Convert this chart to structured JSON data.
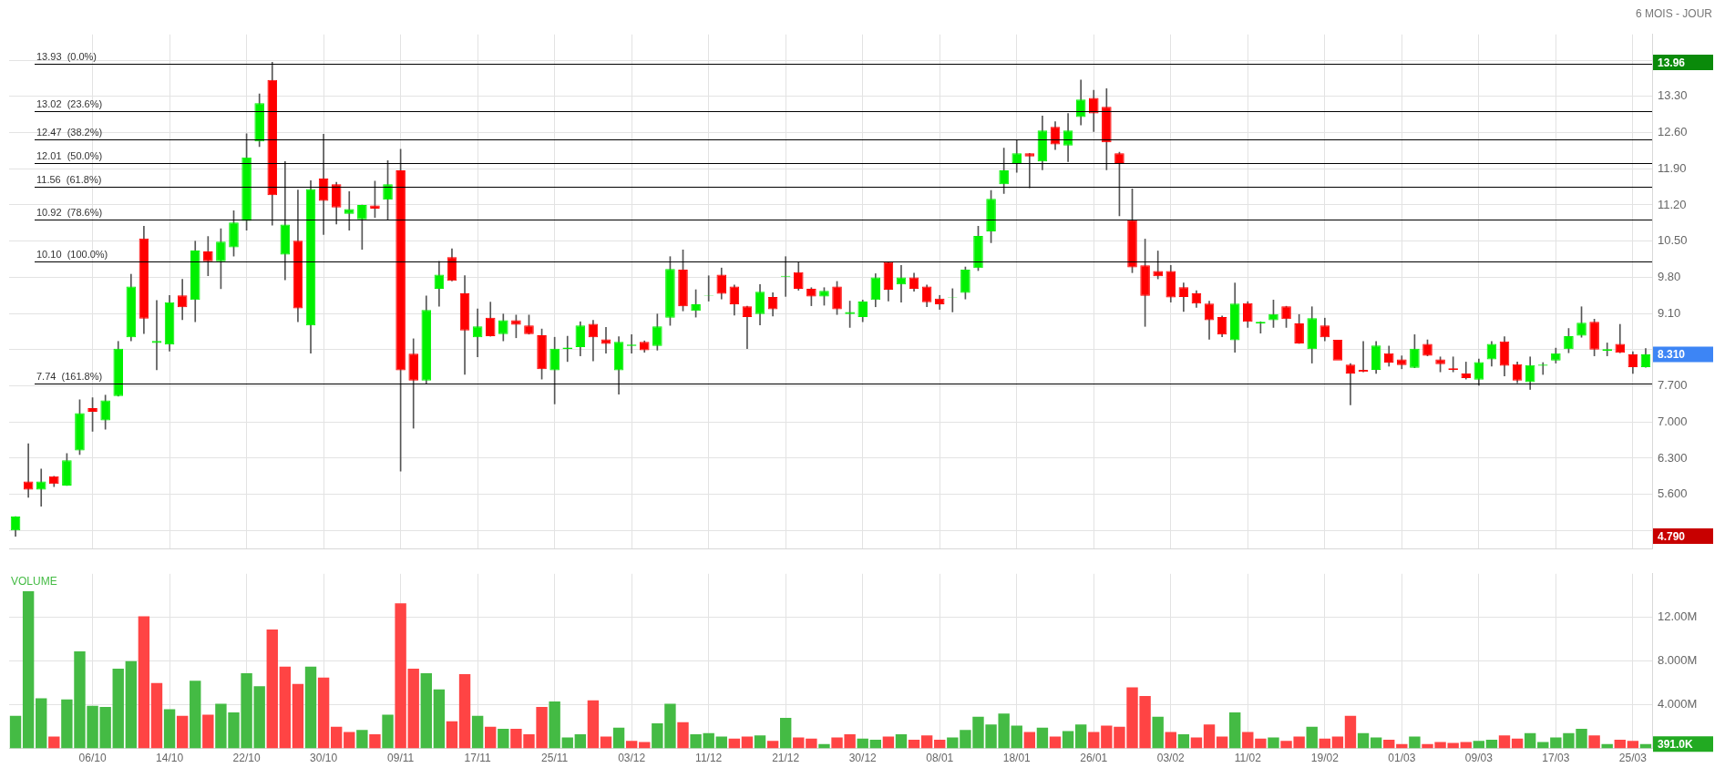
{
  "chart_data": [
    {
      "type": "candlestick",
      "subtitle": "6 MOIS - JOUR",
      "categories": [
        null,
        null,
        null,
        null,
        null,
        null,
        null,
        null,
        null,
        null,
        null,
        null,
        null,
        null,
        null,
        null,
        null,
        null,
        null,
        null,
        null,
        null,
        null,
        null,
        null,
        null,
        null,
        null,
        null,
        null,
        null,
        null,
        null,
        null,
        null,
        null,
        null,
        null,
        null,
        null,
        null,
        null,
        null,
        null,
        null,
        null,
        null,
        null,
        null,
        null,
        null,
        null,
        null,
        null,
        null,
        null,
        null,
        null,
        null,
        null,
        null,
        null,
        null,
        null,
        null,
        null,
        null,
        null,
        null,
        null,
        null,
        null,
        null,
        null,
        null,
        null,
        null,
        null,
        null,
        null,
        null,
        null,
        null,
        null,
        null,
        null,
        null,
        null,
        null,
        null,
        null,
        null,
        null,
        null,
        null,
        null,
        null,
        null,
        null,
        null,
        null,
        null,
        null,
        null,
        null,
        null,
        null,
        null,
        null,
        null,
        null,
        null,
        null,
        null,
        null,
        null,
        null,
        null,
        null,
        null,
        null,
        null,
        null,
        null,
        null,
        null,
        null,
        null
      ],
      "ohlc": [
        [
          4.9,
          5.17,
          4.79,
          5.17
        ],
        [
          5.85,
          6.58,
          5.54,
          5.69
        ],
        [
          5.69,
          6.09,
          5.37,
          5.85
        ],
        [
          5.95,
          5.95,
          5.75,
          5.8
        ],
        [
          5.77,
          6.39,
          5.77,
          6.26
        ],
        [
          6.45,
          7.43,
          6.37,
          7.17
        ],
        [
          7.27,
          7.47,
          6.82,
          7.2
        ],
        [
          7.03,
          7.52,
          6.86,
          7.42
        ],
        [
          7.5,
          8.56,
          7.5,
          8.42
        ],
        [
          8.64,
          9.86,
          8.57,
          9.62
        ],
        [
          10.55,
          10.79,
          8.71,
          9.0
        ],
        [
          8.53,
          9.35,
          8.01,
          8.57
        ],
        [
          8.5,
          9.45,
          8.37,
          9.32
        ],
        [
          9.45,
          9.76,
          8.98,
          9.22
        ],
        [
          9.36,
          10.5,
          8.94,
          10.32
        ],
        [
          10.3,
          10.59,
          9.83,
          10.11
        ],
        [
          10.11,
          10.74,
          9.58,
          10.49
        ],
        [
          10.38,
          11.09,
          10.21,
          10.86
        ],
        [
          10.89,
          12.58,
          10.71,
          12.12
        ],
        [
          12.43,
          13.35,
          12.33,
          13.17
        ],
        [
          13.62,
          13.96,
          10.81,
          11.39
        ],
        [
          10.24,
          12.04,
          9.75,
          10.82
        ],
        [
          10.51,
          11.49,
          8.94,
          9.2
        ],
        [
          8.87,
          11.67,
          8.33,
          11.51
        ],
        [
          11.71,
          12.57,
          10.63,
          11.28
        ],
        [
          11.6,
          11.64,
          10.83,
          11.15
        ],
        [
          11.03,
          11.46,
          10.71,
          11.12
        ],
        [
          10.92,
          11.2,
          10.34,
          11.2
        ],
        [
          11.19,
          11.66,
          10.96,
          11.13
        ],
        [
          11.3,
          12.06,
          10.92,
          11.6
        ],
        [
          11.87,
          12.28,
          6.05,
          8.0
        ],
        [
          8.32,
          8.61,
          6.88,
          7.8
        ],
        [
          7.8,
          9.44,
          7.74,
          9.17
        ],
        [
          9.58,
          10.11,
          9.24,
          9.85
        ],
        [
          10.19,
          10.35,
          9.73,
          9.73
        ],
        [
          9.49,
          9.83,
          7.92,
          8.77
        ],
        [
          8.64,
          9.19,
          8.26,
          8.85
        ],
        [
          9.02,
          9.32,
          8.66,
          8.66
        ],
        [
          8.7,
          9.09,
          8.57,
          8.97
        ],
        [
          8.97,
          9.07,
          8.63,
          8.88
        ],
        [
          8.87,
          9.07,
          8.7,
          8.7
        ],
        [
          8.68,
          8.8,
          7.83,
          8.02
        ],
        [
          8.0,
          8.64,
          7.35,
          8.42
        ],
        [
          8.41,
          8.66,
          8.17,
          8.44
        ],
        [
          8.45,
          8.94,
          8.28,
          8.87
        ],
        [
          8.9,
          8.97,
          8.18,
          8.64
        ],
        [
          8.6,
          8.83,
          8.33,
          8.51
        ],
        [
          8.0,
          8.65,
          7.54,
          8.55
        ],
        [
          8.47,
          8.69,
          8.33,
          8.5
        ],
        [
          8.55,
          8.57,
          8.35,
          8.39
        ],
        [
          8.47,
          9.09,
          8.39,
          8.85
        ],
        [
          9.02,
          10.2,
          8.87,
          9.96
        ],
        [
          9.95,
          10.33,
          9.15,
          9.24
        ],
        [
          9.15,
          9.56,
          9.03,
          9.28
        ],
        [
          9.44,
          9.83,
          9.34,
          9.45
        ],
        [
          9.85,
          9.98,
          9.38,
          9.48
        ],
        [
          9.62,
          9.65,
          9.07,
          9.28
        ],
        [
          9.24,
          9.24,
          8.42,
          9.03
        ],
        [
          9.09,
          9.66,
          8.88,
          9.52
        ],
        [
          9.42,
          9.5,
          9.05,
          9.18
        ],
        [
          9.81,
          10.2,
          9.43,
          9.83
        ],
        [
          9.9,
          10.09,
          9.55,
          9.58
        ],
        [
          9.58,
          9.6,
          9.25,
          9.43
        ],
        [
          9.43,
          9.6,
          9.26,
          9.54
        ],
        [
          9.62,
          9.72,
          9.08,
          9.18
        ],
        [
          9.09,
          9.34,
          8.83,
          9.13
        ],
        [
          9.03,
          9.36,
          8.94,
          9.33
        ],
        [
          9.36,
          9.87,
          9.23,
          9.8
        ],
        [
          10.1,
          10.1,
          9.34,
          9.56
        ],
        [
          9.66,
          10.03,
          9.32,
          9.8
        ],
        [
          9.8,
          9.88,
          9.53,
          9.58
        ],
        [
          9.62,
          9.65,
          9.23,
          9.32
        ],
        [
          9.39,
          9.45,
          9.18,
          9.28
        ],
        [
          9.4,
          9.58,
          9.13,
          9.41
        ],
        [
          9.5,
          10.0,
          9.38,
          9.95
        ],
        [
          9.98,
          10.79,
          9.93,
          10.6
        ],
        [
          10.69,
          11.48,
          10.47,
          11.32
        ],
        [
          11.6,
          12.3,
          11.42,
          11.87
        ],
        [
          12.01,
          12.45,
          11.83,
          12.2
        ],
        [
          12.2,
          12.2,
          11.53,
          12.14
        ],
        [
          12.04,
          12.92,
          11.88,
          12.64
        ],
        [
          12.71,
          12.81,
          12.27,
          12.37
        ],
        [
          12.35,
          12.97,
          12.04,
          12.64
        ],
        [
          12.9,
          13.62,
          12.75,
          13.24
        ],
        [
          13.27,
          13.42,
          12.62,
          12.97
        ],
        [
          13.1,
          13.45,
          11.88,
          12.41
        ],
        [
          12.2,
          12.22,
          10.99,
          12.01
        ],
        [
          10.91,
          11.51,
          9.89,
          9.99
        ],
        [
          10.03,
          10.54,
          8.85,
          9.44
        ],
        [
          9.92,
          10.31,
          9.77,
          9.82
        ],
        [
          9.92,
          10.03,
          9.32,
          9.41
        ],
        [
          9.61,
          9.69,
          9.14,
          9.42
        ],
        [
          9.49,
          9.54,
          9.22,
          9.29
        ],
        [
          9.29,
          9.34,
          8.6,
          8.97
        ],
        [
          9.03,
          9.05,
          8.65,
          8.69
        ],
        [
          8.58,
          9.69,
          8.35,
          9.29
        ],
        [
          9.3,
          9.33,
          8.83,
          8.94
        ],
        [
          8.91,
          8.94,
          8.72,
          8.94
        ],
        [
          8.97,
          9.36,
          8.83,
          9.09
        ],
        [
          9.24,
          9.24,
          8.83,
          8.99
        ],
        [
          8.91,
          9.08,
          8.52,
          8.52
        ],
        [
          8.41,
          9.23,
          8.14,
          9.01
        ],
        [
          8.87,
          9.01,
          8.57,
          8.64
        ],
        [
          8.59,
          8.59,
          8.19,
          8.19
        ],
        [
          8.11,
          8.13,
          7.33,
          7.94
        ],
        [
          8.01,
          8.56,
          7.97,
          7.97
        ],
        [
          8.01,
          8.56,
          7.94,
          8.48
        ],
        [
          8.33,
          8.47,
          8.08,
          8.15
        ],
        [
          8.21,
          8.28,
          8.03,
          8.1
        ],
        [
          8.05,
          8.69,
          8.05,
          8.42
        ],
        [
          8.51,
          8.59,
          8.28,
          8.28
        ],
        [
          8.21,
          8.26,
          7.97,
          8.12
        ],
        [
          8.04,
          8.26,
          7.97,
          8.01
        ],
        [
          7.94,
          8.16,
          7.83,
          7.85
        ],
        [
          7.82,
          8.22,
          7.71,
          8.16
        ],
        [
          8.21,
          8.56,
          8.08,
          8.51
        ],
        [
          8.56,
          8.65,
          7.89,
          8.09
        ],
        [
          8.12,
          8.16,
          7.76,
          7.8
        ],
        [
          7.77,
          8.26,
          7.63,
          8.1
        ],
        [
          8.09,
          8.15,
          7.92,
          8.11
        ],
        [
          8.19,
          8.43,
          8.14,
          8.33
        ],
        [
          8.41,
          8.81,
          8.34,
          8.66
        ],
        [
          8.67,
          9.23,
          8.64,
          8.92
        ],
        [
          8.94,
          8.99,
          8.28,
          8.4
        ],
        [
          8.38,
          8.53,
          8.28,
          8.41
        ],
        [
          8.51,
          8.89,
          8.34,
          8.34
        ],
        [
          8.31,
          8.36,
          7.94,
          8.06
        ],
        [
          8.06,
          8.42,
          8.06,
          8.31
        ]
      ],
      "colors": [
        "#00f000",
        "#ff0000",
        "#00f000",
        "#ff0000",
        "#00f000",
        "#00f000",
        "#ff0000",
        "#00f000",
        "#00f000",
        "#00f000",
        "#ff0000",
        "#00f000",
        "#00f000",
        "#ff0000",
        "#00f000",
        "#ff0000",
        "#00f000",
        "#00f000",
        "#00f000",
        "#00f000",
        "#ff0000",
        "#00f000",
        "#ff0000",
        "#00f000",
        "#ff0000",
        "#ff0000",
        "#00f000",
        "#00f000",
        "#ff0000",
        "#00f000",
        "#ff0000",
        "#ff0000",
        "#00f000",
        "#00f000",
        "#ff0000",
        "#ff0000",
        "#00f000",
        "#ff0000",
        "#00f000",
        "#ff0000",
        "#ff0000",
        "#ff0000",
        "#00f000",
        "#00f000",
        "#00f000",
        "#ff0000",
        "#ff0000",
        "#00f000",
        "#00f000",
        "#ff0000",
        "#00f000",
        "#00f000",
        "#ff0000",
        "#00f000",
        "#00f000",
        "#ff0000",
        "#ff0000",
        "#ff0000",
        "#00f000",
        "#ff0000",
        "#00f000",
        "#ff0000",
        "#ff0000",
        "#00f000",
        "#ff0000",
        "#00f000",
        "#00f000",
        "#00f000",
        "#ff0000",
        "#00f000",
        "#ff0000",
        "#ff0000",
        "#ff0000",
        "#00f000",
        "#00f000",
        "#00f000",
        "#00f000",
        "#00f000",
        "#00f000",
        "#ff0000",
        "#00f000",
        "#ff0000",
        "#00f000",
        "#00f000",
        "#ff0000",
        "#ff0000",
        "#ff0000",
        "#ff0000",
        "#ff0000",
        "#ff0000",
        "#ff0000",
        "#ff0000",
        "#ff0000",
        "#ff0000",
        "#ff0000",
        "#00f000",
        "#ff0000",
        "#00f000",
        "#00f000",
        "#ff0000",
        "#ff0000",
        "#00f000",
        "#ff0000",
        "#ff0000",
        "#ff0000",
        "#ff0000",
        "#00f000",
        "#ff0000",
        "#ff0000",
        "#00f000",
        "#ff0000",
        "#ff0000",
        "#ff0000",
        "#ff0000",
        "#00f000",
        "#00f000",
        "#ff0000",
        "#ff0000",
        "#00f000",
        "#00f000",
        "#00f000",
        "#00f000",
        "#00f000",
        "#ff0000",
        "#00f000",
        "#ff0000",
        "#ff0000",
        "#00f000"
      ],
      "ylim": [
        4.55,
        14.5
      ],
      "yticks": [
        {
          "value": 4.9,
          "label": null
        },
        {
          "value": 5.6,
          "label": "5.600"
        },
        {
          "value": 6.3,
          "label": "6.300"
        },
        {
          "value": 7,
          "label": "7.000"
        },
        {
          "value": 7.7,
          "label": "7.700"
        },
        {
          "value": 8.4,
          "label": null
        },
        {
          "value": 9.1,
          "label": "9.10"
        },
        {
          "value": 9.8,
          "label": "9.80"
        },
        {
          "value": 10.5,
          "label": "10.50"
        },
        {
          "value": 11.2,
          "label": "11.20"
        },
        {
          "value": 11.9,
          "label": "11.90"
        },
        {
          "value": 12.6,
          "label": "12.60"
        },
        {
          "value": 13.3,
          "label": "13.30"
        },
        {
          "value": 14,
          "label": null
        }
      ],
      "ref_lines": [
        {
          "axis": "y",
          "value": 13.93,
          "label": "13.93  (0.0%)",
          "color": "#000000"
        },
        {
          "axis": "y",
          "value": 13.02,
          "label": "13.02  (23.6%)",
          "color": "#000000"
        },
        {
          "axis": "y",
          "value": 12.47,
          "label": "12.47  (38.2%)",
          "color": "#000000"
        },
        {
          "axis": "y",
          "value": 12.01,
          "label": "12.01  (50.0%)",
          "color": "#000000"
        },
        {
          "axis": "y",
          "value": 11.56,
          "label": "11.56  (61.8%)",
          "color": "#000000"
        },
        {
          "axis": "y",
          "value": 10.92,
          "label": "10.92  (78.6%)",
          "color": "#000000"
        },
        {
          "axis": "y",
          "value": 10.1,
          "label": "10.10  (100.0%)",
          "color": "#000000"
        },
        {
          "axis": "y",
          "value": 7.74,
          "label": "7.74  (161.8%)",
          "color": "#000000"
        }
      ],
      "annotations": [
        "13.96",
        "8.310",
        "4.790"
      ],
      "grid": true,
      "legend": false,
      "tick_labels": "y"
    },
    {
      "type": "bar",
      "title": "VOLUME",
      "categories": [
        null,
        null,
        null,
        null,
        null,
        null,
        "06/10",
        null,
        null,
        null,
        null,
        null,
        "14/10",
        null,
        null,
        null,
        null,
        null,
        "22/10",
        null,
        null,
        null,
        null,
        null,
        "30/10",
        null,
        null,
        null,
        null,
        null,
        "09/11",
        null,
        null,
        null,
        null,
        null,
        "17/11",
        null,
        null,
        null,
        null,
        null,
        "25/11",
        null,
        null,
        null,
        null,
        null,
        "03/12",
        null,
        null,
        null,
        null,
        null,
        "11/12",
        null,
        null,
        null,
        null,
        null,
        "21/12",
        null,
        null,
        null,
        null,
        null,
        "30/12",
        null,
        null,
        null,
        null,
        null,
        "08/01",
        null,
        null,
        null,
        null,
        null,
        "18/01",
        null,
        null,
        null,
        null,
        null,
        "26/01",
        null,
        null,
        null,
        null,
        null,
        "03/02",
        null,
        null,
        null,
        null,
        null,
        "11/02",
        null,
        null,
        null,
        null,
        null,
        "19/02",
        null,
        null,
        null,
        null,
        null,
        "01/03",
        null,
        null,
        null,
        null,
        null,
        "09/03",
        null,
        null,
        null,
        null,
        null,
        "17/03",
        null,
        null,
        null,
        null,
        null,
        "25/03",
        null
      ],
      "values": [
        3.0,
        14.4,
        4.6,
        1.1,
        4.5,
        8.9,
        3.9,
        3.8,
        7.3,
        8.0,
        12.1,
        6.0,
        3.6,
        3.0,
        6.2,
        3.1,
        4.1,
        3.3,
        6.9,
        5.7,
        10.9,
        7.5,
        5.9,
        7.5,
        6.5,
        2.0,
        1.5,
        1.7,
        1.3,
        3.1,
        13.3,
        7.3,
        6.9,
        5.4,
        2.5,
        6.8,
        3.0,
        2.0,
        1.8,
        1.8,
        1.3,
        3.8,
        4.3,
        1.0,
        1.3,
        4.4,
        1.1,
        1.9,
        0.7,
        0.6,
        2.3,
        4.1,
        2.4,
        1.3,
        1.4,
        1.1,
        0.9,
        1.1,
        1.2,
        0.7,
        2.8,
        1.0,
        0.9,
        0.4,
        1.0,
        1.3,
        0.9,
        0.8,
        1.1,
        1.3,
        0.8,
        1.2,
        0.8,
        1.0,
        1.7,
        2.9,
        2.2,
        3.2,
        2.1,
        1.5,
        1.9,
        1.1,
        1.6,
        2.2,
        1.5,
        2.1,
        2.0,
        5.6,
        4.8,
        2.9,
        1.5,
        1.3,
        1.0,
        2.2,
        1.1,
        3.3,
        1.5,
        0.9,
        1.0,
        0.7,
        1.1,
        2.0,
        0.9,
        1.1,
        3.0,
        1.4,
        1.0,
        0.8,
        0.4,
        1.1,
        0.4,
        0.6,
        0.5,
        0.6,
        0.7,
        0.8,
        1.2,
        0.9,
        1.4,
        0.6,
        1.0,
        1.4,
        1.8,
        1.2,
        0.4,
        0.8,
        0.7,
        0.4
      ],
      "colors": [
        "#44bb44",
        "#44bb44",
        "#44bb44",
        "#ff4444",
        "#44bb44",
        "#44bb44",
        "#44bb44",
        "#44bb44",
        "#44bb44",
        "#44bb44",
        "#ff4444",
        "#ff4444",
        "#44bb44",
        "#ff4444",
        "#44bb44",
        "#ff4444",
        "#44bb44",
        "#44bb44",
        "#44bb44",
        "#44bb44",
        "#ff4444",
        "#ff4444",
        "#ff4444",
        "#44bb44",
        "#ff4444",
        "#ff4444",
        "#ff4444",
        "#44bb44",
        "#ff4444",
        "#44bb44",
        "#ff4444",
        "#ff4444",
        "#44bb44",
        "#44bb44",
        "#ff4444",
        "#ff4444",
        "#44bb44",
        "#ff4444",
        "#44bb44",
        "#ff4444",
        "#ff4444",
        "#ff4444",
        "#44bb44",
        "#44bb44",
        "#44bb44",
        "#ff4444",
        "#ff4444",
        "#44bb44",
        "#ff4444",
        "#ff4444",
        "#44bb44",
        "#44bb44",
        "#ff4444",
        "#44bb44",
        "#44bb44",
        "#44bb44",
        "#ff4444",
        "#ff4444",
        "#44bb44",
        "#ff4444",
        "#44bb44",
        "#ff4444",
        "#ff4444",
        "#44bb44",
        "#ff4444",
        "#ff4444",
        "#44bb44",
        "#44bb44",
        "#ff4444",
        "#44bb44",
        "#ff4444",
        "#ff4444",
        "#ff4444",
        "#44bb44",
        "#44bb44",
        "#44bb44",
        "#44bb44",
        "#44bb44",
        "#44bb44",
        "#ff4444",
        "#44bb44",
        "#ff4444",
        "#44bb44",
        "#44bb44",
        "#ff4444",
        "#ff4444",
        "#ff4444",
        "#ff4444",
        "#ff4444",
        "#44bb44",
        "#ff4444",
        "#44bb44",
        "#ff4444",
        "#ff4444",
        "#ff4444",
        "#44bb44",
        "#ff4444",
        "#ff4444",
        "#44bb44",
        "#ff4444",
        "#ff4444",
        "#44bb44",
        "#ff4444",
        "#ff4444",
        "#ff4444",
        "#44bb44",
        "#44bb44",
        "#ff4444",
        "#ff4444",
        "#44bb44",
        "#ff4444",
        "#ff4444",
        "#ff4444",
        "#ff4444",
        "#44bb44",
        "#44bb44",
        "#ff4444",
        "#ff4444",
        "#44bb44",
        "#44bb44",
        "#44bb44",
        "#44bb44",
        "#44bb44",
        "#ff4444",
        "#44bb44",
        "#ff4444",
        "#ff4444",
        "#44bb44"
      ],
      "ylim": [
        0,
        16
      ],
      "yticks": [
        {
          "value": 4,
          "label": "4.000M"
        },
        {
          "value": 8,
          "label": "8.000M"
        },
        {
          "value": 12,
          "label": "12.00M"
        }
      ],
      "annotations": [
        "391.0K"
      ],
      "grid": true,
      "legend": false
    }
  ]
}
